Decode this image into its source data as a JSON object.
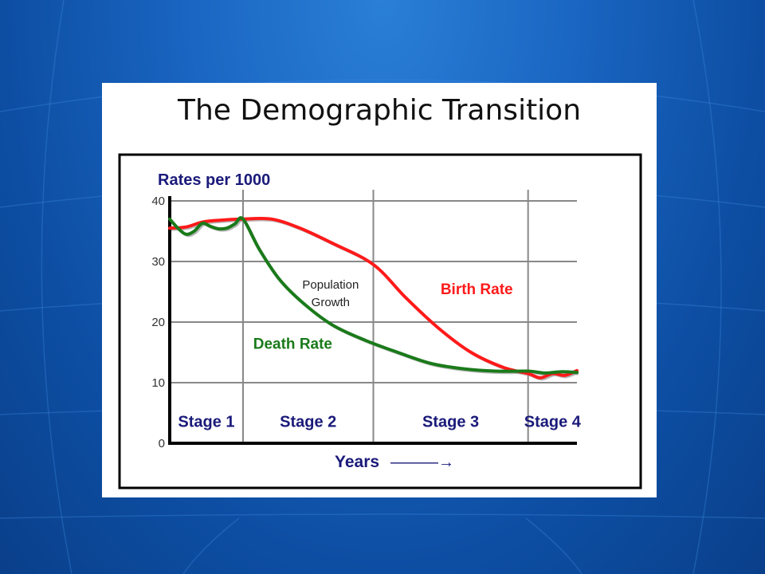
{
  "chart_data": {
    "type": "line",
    "title": "The Demographic Transition",
    "ylabel": "Rates per 1000",
    "xlabel": "Years",
    "xlabel_arrow": "———→",
    "ylim": [
      0,
      40
    ],
    "xlim": [
      0,
      100
    ],
    "yticks": [
      0,
      10,
      20,
      30,
      40
    ],
    "grid": true,
    "stages": [
      {
        "label": "Stage 1",
        "start": 0,
        "end": 18
      },
      {
        "label": "Stage 2",
        "start": 18,
        "end": 50
      },
      {
        "label": "Stage 3",
        "start": 50,
        "end": 88
      },
      {
        "label": "Stage 4",
        "start": 88,
        "end": 100
      }
    ],
    "series": [
      {
        "name": "Birth Rate",
        "color": "#ff1a1a",
        "x": [
          0,
          4,
          8,
          12,
          18,
          25,
          32,
          40,
          50,
          58,
          66,
          74,
          82,
          88,
          91,
          94,
          97,
          100
        ],
        "y": [
          35.5,
          35.7,
          36.5,
          36.8,
          37,
          37,
          35.5,
          33,
          29.5,
          24,
          19,
          15,
          12.5,
          11.5,
          10.8,
          11.5,
          11.2,
          12
        ]
      },
      {
        "name": "Death Rate",
        "color": "#1a7a1a",
        "x": [
          0,
          2,
          4,
          6,
          8,
          10,
          12,
          14,
          16,
          18,
          22,
          27,
          33,
          40,
          48,
          56,
          64,
          72,
          80,
          88,
          92,
          96,
          100
        ],
        "y": [
          37,
          35.5,
          34.5,
          35,
          36.3,
          35.8,
          35.4,
          35.5,
          36.2,
          37,
          32,
          27,
          23,
          19.5,
          17,
          15,
          13.2,
          12.3,
          11.9,
          11.9,
          11.6,
          11.8,
          11.7
        ]
      }
    ],
    "annotations": [
      {
        "text": "Population",
        "x": 39.5,
        "y": 25.5
      },
      {
        "text": "Growth",
        "x": 39.5,
        "y": 22.6
      }
    ],
    "stage_label_y": 2.7
  }
}
